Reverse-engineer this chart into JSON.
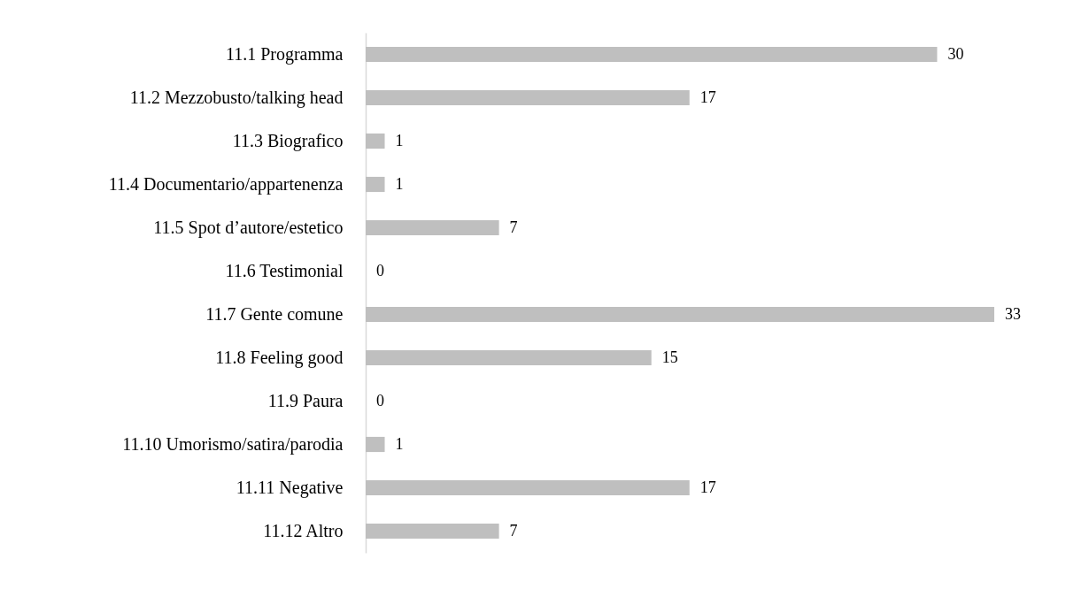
{
  "chart_data": {
    "type": "bar",
    "orientation": "horizontal",
    "categories": [
      "11.1 Programma",
      "11.2 Mezzobusto/talking head",
      "11.3 Biografico",
      "11.4 Documentario/appartenenza",
      "11.5 Spot d’autore/estetico",
      "11.6 Testimonial",
      "11.7 Gente comune",
      "11.8 Feeling good",
      "11.9 Paura",
      "11.10 Umorismo/satira/parodia",
      "11.11 Negative",
      "11.12 Altro"
    ],
    "values": [
      30,
      17,
      1,
      1,
      7,
      0,
      33,
      15,
      0,
      1,
      17,
      7
    ],
    "color": "#bfbfbf",
    "data_labels": true,
    "tick_labels": "y"
  }
}
